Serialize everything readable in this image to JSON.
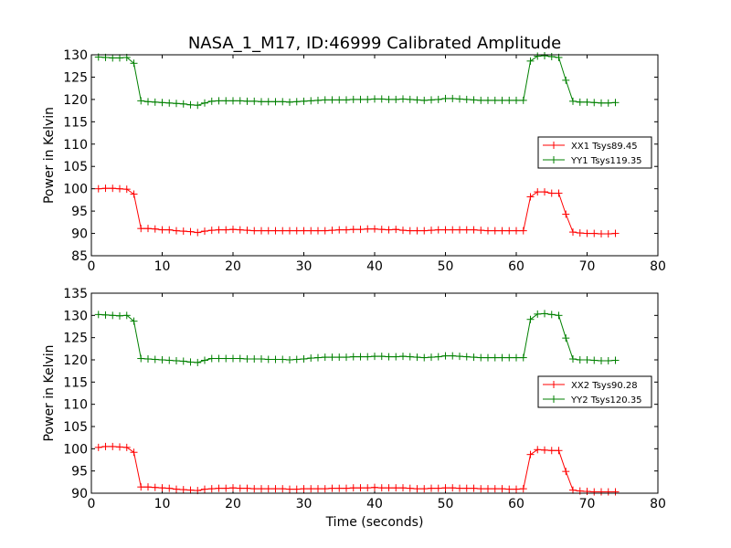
{
  "colors": {
    "xx": "#ff0000",
    "yy": "#008000"
  },
  "chart_data": [
    {
      "type": "line",
      "title": "NASA_1_M17, ID:46999 Calibrated Amplitude",
      "xlabel": "",
      "ylabel": "Power in Kelvin",
      "xlim": [
        0,
        80
      ],
      "ylim": [
        85,
        130
      ],
      "xticks": [
        0,
        10,
        20,
        30,
        40,
        50,
        60,
        70,
        80
      ],
      "yticks": [
        85,
        90,
        95,
        100,
        105,
        110,
        115,
        120,
        125,
        130
      ],
      "grid": false,
      "legend": "center-right",
      "series": [
        {
          "name": "XX1 Tsys89.45",
          "color": "#ff0000",
          "x": [
            1,
            2,
            3,
            4,
            5,
            6,
            7,
            8,
            9,
            10,
            11,
            12,
            13,
            14,
            15,
            16,
            17,
            18,
            19,
            20,
            21,
            22,
            23,
            24,
            25,
            26,
            27,
            28,
            29,
            30,
            31,
            32,
            33,
            34,
            35,
            36,
            37,
            38,
            39,
            40,
            41,
            42,
            43,
            44,
            45,
            46,
            47,
            48,
            49,
            50,
            51,
            52,
            53,
            54,
            55,
            56,
            57,
            58,
            59,
            60,
            61,
            62,
            63,
            64,
            65,
            66,
            67,
            68,
            69,
            70,
            71,
            72,
            73,
            74
          ],
          "y": [
            100,
            100.1,
            100.1,
            100,
            99.9,
            98.8,
            91.1,
            91.1,
            91.0,
            90.8,
            90.8,
            90.6,
            90.5,
            90.4,
            90.2,
            90.5,
            90.7,
            90.8,
            90.8,
            90.9,
            90.8,
            90.7,
            90.6,
            90.6,
            90.6,
            90.6,
            90.6,
            90.6,
            90.6,
            90.6,
            90.6,
            90.6,
            90.6,
            90.7,
            90.8,
            90.8,
            90.9,
            90.9,
            91.0,
            91.0,
            90.9,
            90.8,
            90.9,
            90.7,
            90.6,
            90.6,
            90.6,
            90.7,
            90.8,
            90.8,
            90.8,
            90.8,
            90.8,
            90.8,
            90.7,
            90.6,
            90.6,
            90.6,
            90.6,
            90.6,
            90.6,
            98.2,
            99.3,
            99.3,
            99.0,
            99.0,
            94.3,
            90.3,
            90.1,
            90.0,
            90.0,
            89.9,
            89.9,
            90.0
          ]
        },
        {
          "name": "YY1 Tsys119.35",
          "color": "#008000",
          "x": [
            1,
            2,
            3,
            4,
            5,
            6,
            7,
            8,
            9,
            10,
            11,
            12,
            13,
            14,
            15,
            16,
            17,
            18,
            19,
            20,
            21,
            22,
            23,
            24,
            25,
            26,
            27,
            28,
            29,
            30,
            31,
            32,
            33,
            34,
            35,
            36,
            37,
            38,
            39,
            40,
            41,
            42,
            43,
            44,
            45,
            46,
            47,
            48,
            49,
            50,
            51,
            52,
            53,
            54,
            55,
            56,
            57,
            58,
            59,
            60,
            61,
            62,
            63,
            64,
            65,
            66,
            67,
            68,
            69,
            70,
            71,
            72,
            73,
            74
          ],
          "y": [
            129.5,
            129.4,
            129.3,
            129.3,
            129.4,
            128.1,
            119.7,
            119.5,
            119.4,
            119.3,
            119.2,
            119.1,
            119.0,
            118.8,
            118.7,
            119.2,
            119.6,
            119.7,
            119.7,
            119.7,
            119.7,
            119.6,
            119.6,
            119.5,
            119.5,
            119.5,
            119.5,
            119.4,
            119.5,
            119.6,
            119.7,
            119.8,
            119.9,
            119.9,
            119.9,
            119.9,
            120.0,
            120.0,
            120.0,
            120.1,
            120.1,
            120.0,
            120.0,
            120.1,
            120.0,
            119.9,
            119.8,
            119.9,
            120.0,
            120.2,
            120.2,
            120.1,
            120.0,
            119.9,
            119.8,
            119.8,
            119.8,
            119.8,
            119.8,
            119.8,
            119.8,
            128.6,
            129.7,
            129.8,
            129.6,
            129.4,
            124.3,
            119.6,
            119.4,
            119.4,
            119.3,
            119.2,
            119.2,
            119.3
          ]
        }
      ]
    },
    {
      "type": "line",
      "title": "",
      "xlabel": "Time (seconds)",
      "ylabel": "Power in Kelvin",
      "xlim": [
        0,
        80
      ],
      "ylim": [
        90,
        135
      ],
      "xticks": [
        0,
        10,
        20,
        30,
        40,
        50,
        60,
        70,
        80
      ],
      "yticks": [
        90,
        95,
        100,
        105,
        110,
        115,
        120,
        125,
        130,
        135
      ],
      "grid": false,
      "legend": "center-right",
      "series": [
        {
          "name": "XX2 Tsys90.28",
          "color": "#ff0000",
          "x": [
            1,
            2,
            3,
            4,
            5,
            6,
            7,
            8,
            9,
            10,
            11,
            12,
            13,
            14,
            15,
            16,
            17,
            18,
            19,
            20,
            21,
            22,
            23,
            24,
            25,
            26,
            27,
            28,
            29,
            30,
            31,
            32,
            33,
            34,
            35,
            36,
            37,
            38,
            39,
            40,
            41,
            42,
            43,
            44,
            45,
            46,
            47,
            48,
            49,
            50,
            51,
            52,
            53,
            54,
            55,
            56,
            57,
            58,
            59,
            60,
            61,
            62,
            63,
            64,
            65,
            66,
            67,
            68,
            69,
            70,
            71,
            72,
            73,
            74
          ],
          "y": [
            100.3,
            100.5,
            100.5,
            100.4,
            100.3,
            99.2,
            91.4,
            91.4,
            91.3,
            91.2,
            91.1,
            90.9,
            90.8,
            90.7,
            90.6,
            90.9,
            91.0,
            91.1,
            91.1,
            91.2,
            91.1,
            91.1,
            91.0,
            91.0,
            91.0,
            91.0,
            91.0,
            90.9,
            90.9,
            91.0,
            91.0,
            91.0,
            91.0,
            91.1,
            91.1,
            91.1,
            91.2,
            91.2,
            91.2,
            91.3,
            91.2,
            91.2,
            91.2,
            91.2,
            91.1,
            91.0,
            91.0,
            91.1,
            91.1,
            91.2,
            91.2,
            91.1,
            91.1,
            91.1,
            91.0,
            91.0,
            91.0,
            91.0,
            90.9,
            90.9,
            91.0,
            98.7,
            99.8,
            99.7,
            99.6,
            99.6,
            94.9,
            90.7,
            90.5,
            90.4,
            90.3,
            90.3,
            90.3,
            90.3
          ]
        },
        {
          "name": "YY2 Tsys120.35",
          "color": "#008000",
          "x": [
            1,
            2,
            3,
            4,
            5,
            6,
            7,
            8,
            9,
            10,
            11,
            12,
            13,
            14,
            15,
            16,
            17,
            18,
            19,
            20,
            21,
            22,
            23,
            24,
            25,
            26,
            27,
            28,
            29,
            30,
            31,
            32,
            33,
            34,
            35,
            36,
            37,
            38,
            39,
            40,
            41,
            42,
            43,
            44,
            45,
            46,
            47,
            48,
            49,
            50,
            51,
            52,
            53,
            54,
            55,
            56,
            57,
            58,
            59,
            60,
            61,
            62,
            63,
            64,
            65,
            66,
            67,
            68,
            69,
            70,
            71,
            72,
            73,
            74
          ],
          "y": [
            130.2,
            130.1,
            130.0,
            129.9,
            130.0,
            128.7,
            120.3,
            120.2,
            120.1,
            120.0,
            119.9,
            119.8,
            119.7,
            119.5,
            119.4,
            119.9,
            120.3,
            120.3,
            120.3,
            120.3,
            120.3,
            120.2,
            120.2,
            120.2,
            120.1,
            120.1,
            120.1,
            120.0,
            120.1,
            120.2,
            120.4,
            120.5,
            120.6,
            120.6,
            120.6,
            120.6,
            120.7,
            120.7,
            120.7,
            120.8,
            120.8,
            120.7,
            120.7,
            120.8,
            120.7,
            120.6,
            120.5,
            120.6,
            120.7,
            120.9,
            120.9,
            120.8,
            120.7,
            120.6,
            120.5,
            120.5,
            120.5,
            120.5,
            120.5,
            120.5,
            120.5,
            129.1,
            130.3,
            130.4,
            130.2,
            130.0,
            124.9,
            120.2,
            120.0,
            120.0,
            119.9,
            119.8,
            119.8,
            119.9
          ]
        }
      ]
    }
  ]
}
